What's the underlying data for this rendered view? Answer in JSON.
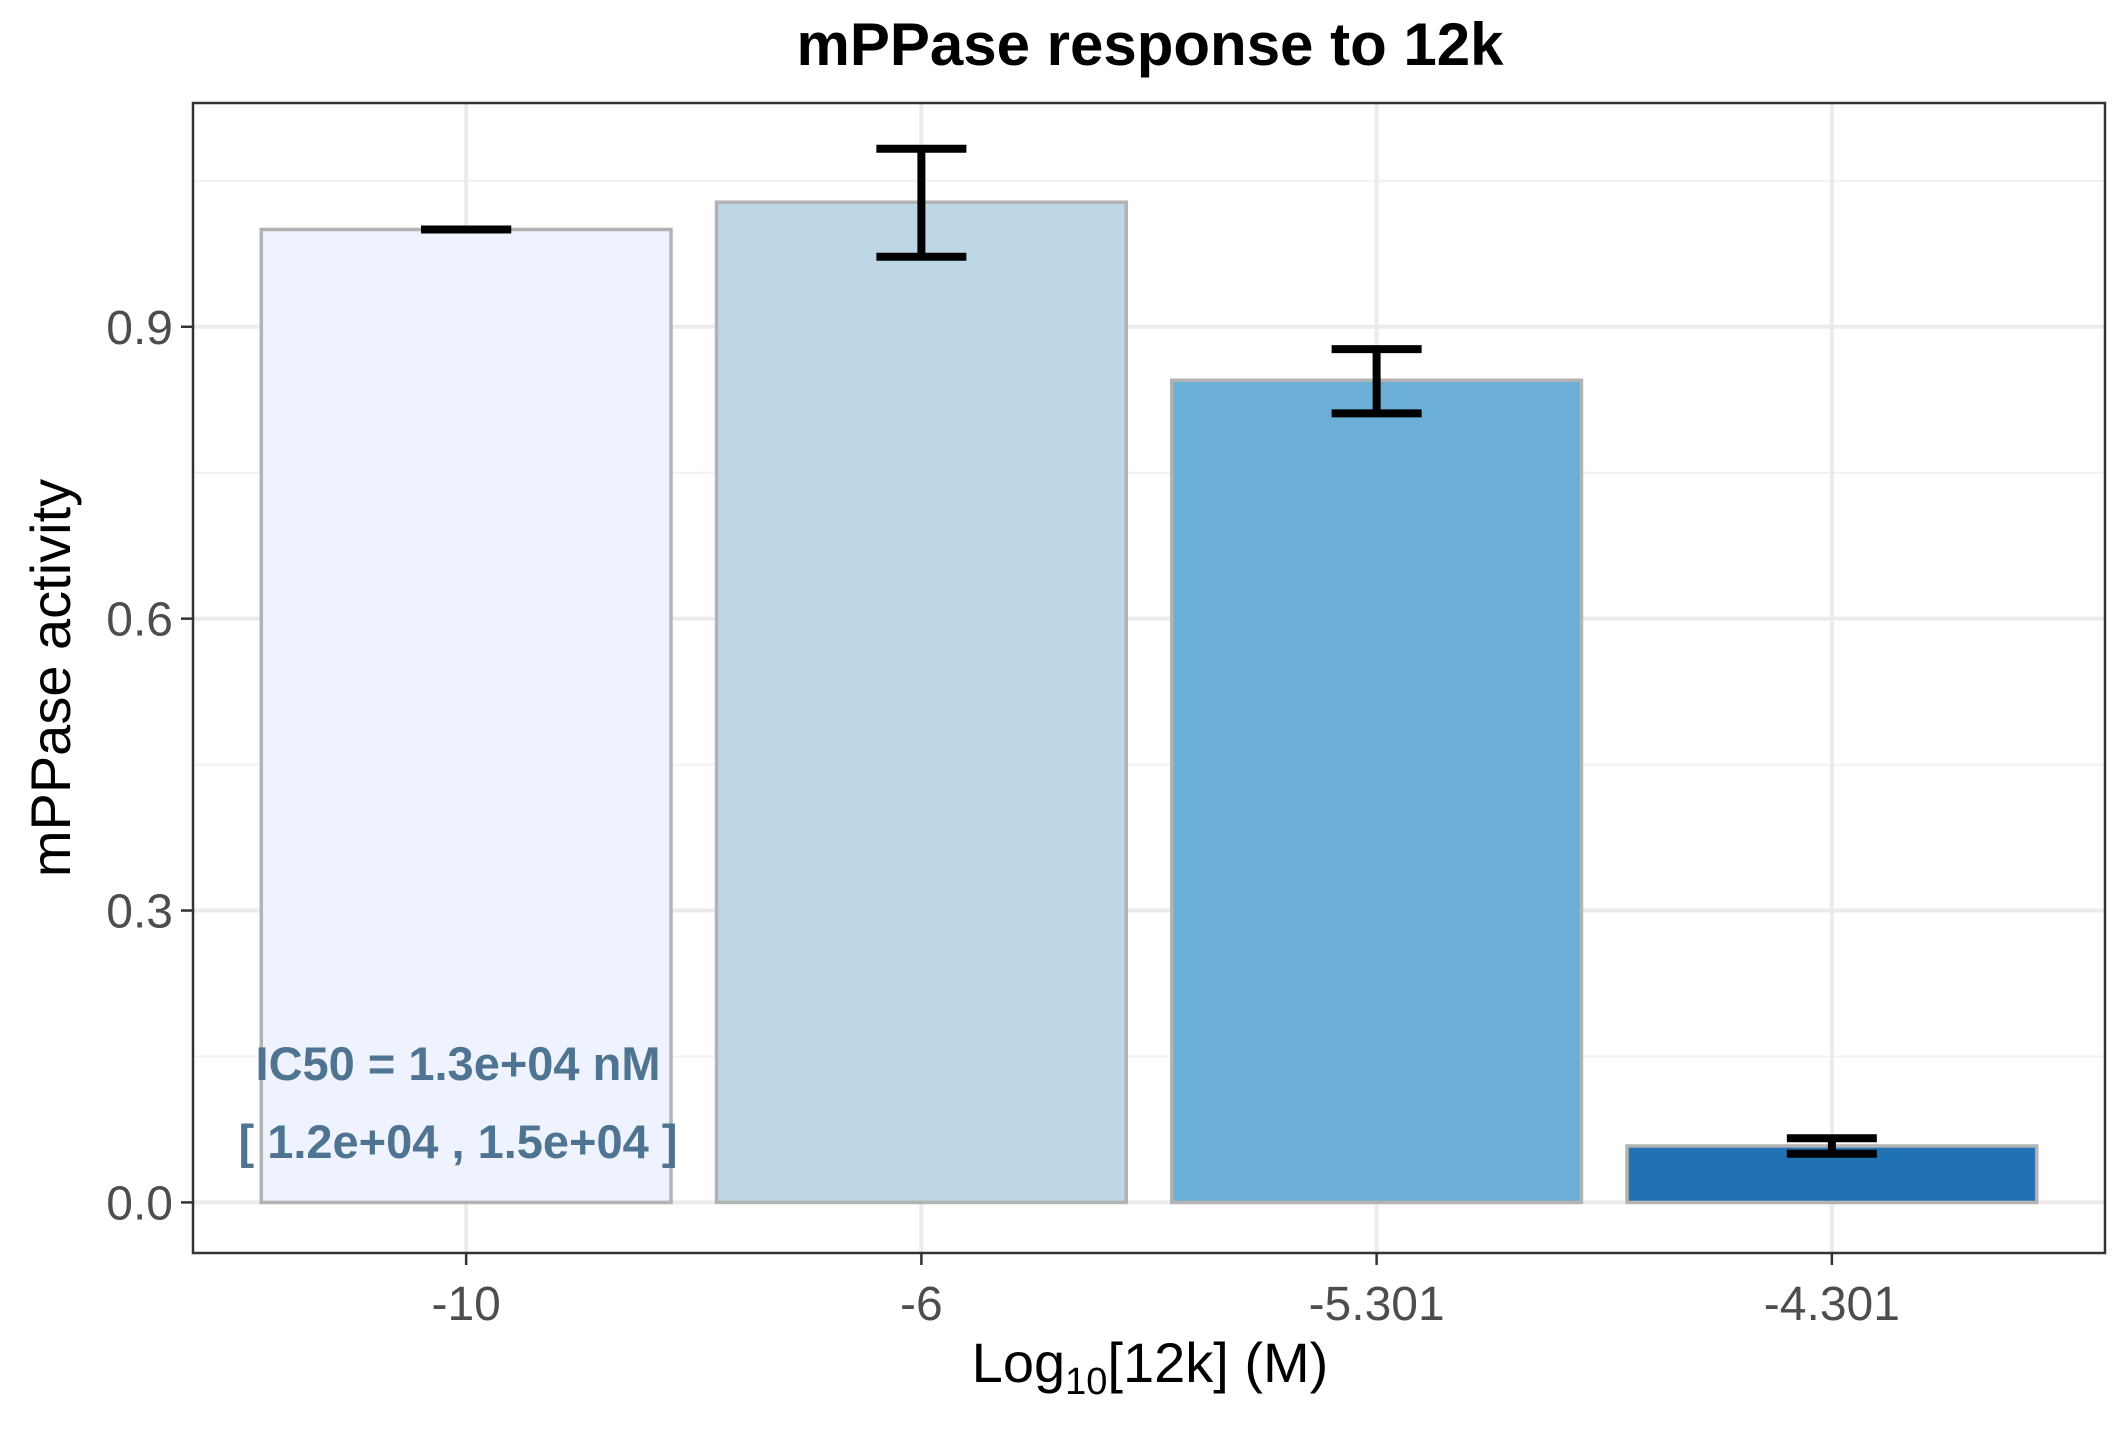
{
  "chart_data": {
    "type": "bar",
    "title": "mPPase response to 12k",
    "xlabel": {
      "prefix": "Log",
      "subscript": "10",
      "suffix": "[12k] (M)"
    },
    "ylabel": "mPPase activity",
    "categories": [
      "-10",
      "-6",
      "-5.301",
      "-4.301"
    ],
    "values": [
      1.0,
      1.028,
      0.845,
      0.058
    ],
    "error_low": [
      1.0,
      0.972,
      0.811,
      0.05
    ],
    "error_high": [
      1.0,
      1.083,
      0.877,
      0.066
    ],
    "colors": [
      "#eff3ff",
      "#bdd7e7",
      "#6baed6",
      "#2171b5"
    ],
    "bar_outline_color": "#b3b3b3",
    "yticks": [
      "0.0",
      "0.3",
      "0.6",
      "0.9"
    ],
    "ytick_values": [
      0.0,
      0.3,
      0.6,
      0.9
    ],
    "ylim": [
      -0.052,
      1.13
    ],
    "grid": true,
    "annotation": {
      "line1": "IC50 = 1.3e+04 nM",
      "line2": "[ 1.2e+04 , 1.5e+04 ]",
      "color": "#4e7491"
    }
  }
}
